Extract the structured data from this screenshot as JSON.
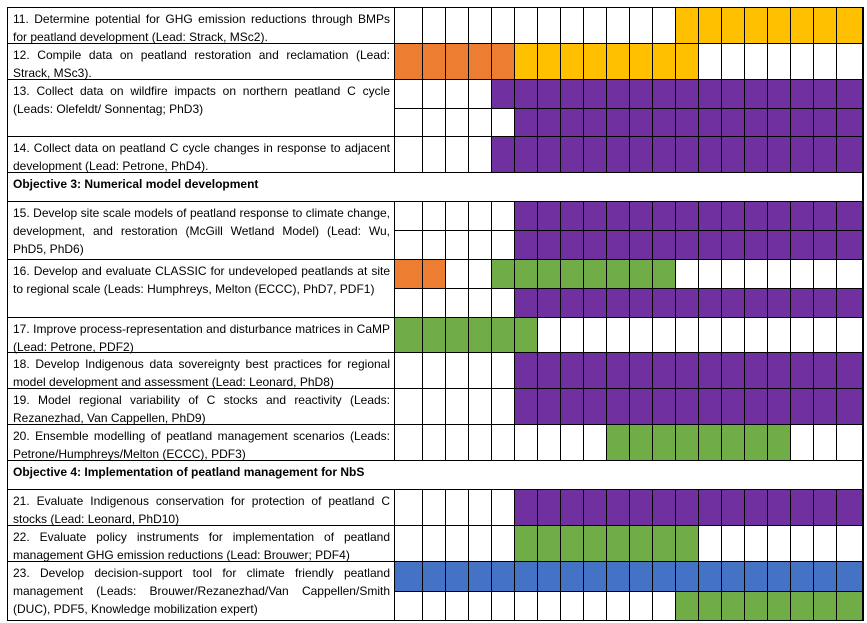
{
  "legend_colors": {
    "O": "#ED7D31",
    "Y": "#FFC000",
    "P": "#7030A0",
    "G": "#70AD47",
    "B": "#4472C4",
    "W": "#FFFFFF"
  },
  "rows": [
    {
      "type": "task",
      "label": "11. Determine potential for GHG emission reductions through BMPs for peatland development (Lead: Strack, MSc2).",
      "h": 36,
      "sub": [
        "WWWWWWWWWWWWYYYYYYYY"
      ]
    },
    {
      "type": "task",
      "label": "12. Compile data on peatland restoration and reclamation (Lead: Strack, MSc3).",
      "h": 36,
      "sub": [
        "OOOOOYYYYYYYYWWWWWWW"
      ]
    },
    {
      "type": "task",
      "label": "13. Collect data on wildfire impacts on northern peatland C cycle (Leads: Olefeldt/ Sonnentag; PhD3)",
      "h": 57,
      "sub": [
        "WWWWPPPPPPPPPPPPPPPP",
        "WWWWWPPPPPPPPPPPPPPP"
      ]
    },
    {
      "type": "task",
      "label": "14. Collect data on peatland C cycle changes in response to adjacent development (Lead: Petrone, PhD4).",
      "h": 36,
      "sub": [
        "WWWWPPPPPPPPPPPPPPPP"
      ]
    },
    {
      "type": "objective",
      "label": "Objective 3: Numerical model development",
      "h": 29
    },
    {
      "type": "task",
      "label": "15. Develop site scale models of peatland response to climate change, development, and restoration (McGill Wetland Model) (Lead: Wu, PhD5, PhD6)",
      "h": 58,
      "sub": [
        "WWWWWPPPPPPPPPPPPPPP",
        "WWWWWPPPPPPPPPPPPPPP"
      ]
    },
    {
      "type": "task",
      "label": "16. Develop and evaluate CLASSIC for undeveloped peatlands at site to regional scale (Leads: Humphreys, Melton (ECCC), PhD7, PDF1)",
      "h": 58,
      "sub": [
        "OOWWGGGGGGGGWWWWWWWW",
        "WWWWWPPPPPPPPPPPPPPP"
      ]
    },
    {
      "type": "task",
      "label": "17. Improve process-representation and disturbance matrices in CaMP (Lead: Petrone, PDF2)",
      "h": 35,
      "sub": [
        "GGGGGGWWWWWWWWWWWWWW"
      ]
    },
    {
      "type": "task",
      "label": "18. Develop Indigenous data sovereignty best practices for regional model development and assessment (Lead: Leonard, PhD8)",
      "h": 36,
      "sub": [
        "WWWWWPPPPPPPPPPPPPPP"
      ]
    },
    {
      "type": "task",
      "label": "19. Model regional variability of C stocks and reactivity (Leads: Rezanezhad, Van Cappellen, PhD9)",
      "h": 36,
      "sub": [
        "WWWWWPPPPPPPPPPPPPPP"
      ]
    },
    {
      "type": "task",
      "label": "20. Ensemble modelling of peatland management scenarios (Leads: Petrone/Humphreys/Melton (ECCC), PDF3)",
      "h": 36,
      "sub": [
        "WWWWWWWWWGGGGGGGGWWW"
      ]
    },
    {
      "type": "objective",
      "label": "Objective 4: Implementation of peatland management for NbS",
      "h": 29
    },
    {
      "type": "task",
      "label": "21. Evaluate Indigenous conservation for protection of peatland C stocks (Lead: Leonard, PhD10)",
      "h": 36,
      "sub": [
        "WWWWWPPPPPPPPPPPPPPP"
      ]
    },
    {
      "type": "task",
      "label": "22. Evaluate policy instruments for implementation of peatland management GHG emission reductions (Lead: Brouwer; PDF4)",
      "h": 36,
      "sub": [
        "WWWWWGGGGGGGGWWWWWWW"
      ]
    },
    {
      "type": "task",
      "label": "23. Develop decision-support tool for climate friendly peatland management (Leads: Brouwer/Rezanezhad/Van Cappellen/Smith (DUC), PDF5, Knowledge mobilization expert)",
      "h": 58,
      "sub": [
        "BBBBBBBBBBBBBBBBBBBB",
        "WWWWWWWWWWWWGGGGGGGG"
      ]
    }
  ]
}
